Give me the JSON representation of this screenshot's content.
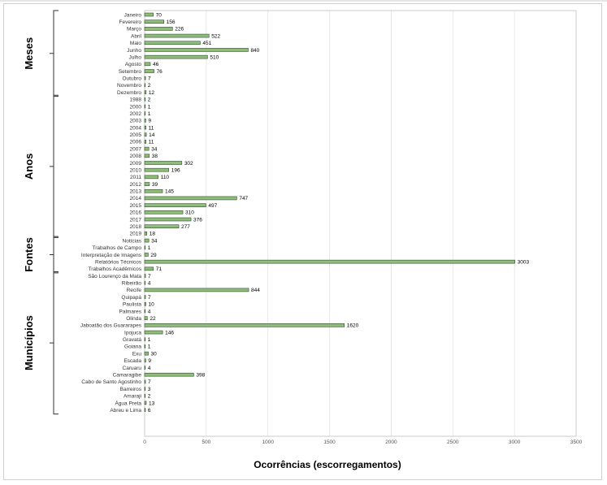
{
  "chart_data": {
    "type": "bar",
    "orientation": "horizontal",
    "xlabel": "Ocorrências (escorregamentos)",
    "xlim": [
      0,
      3500
    ],
    "xticks": [
      0,
      500,
      1000,
      1500,
      2000,
      2500,
      3000,
      3500
    ],
    "grid": "vertical",
    "bar_color": "#8fbc78",
    "bar_edge_color": "#2f4f2f",
    "groups": [
      {
        "name": "Meses",
        "categories": [
          "Janeiro",
          "Fevereiro",
          "Março",
          "Abril",
          "Maio",
          "Junho",
          "Julho",
          "Agosto",
          "Setembro",
          "Outubro",
          "Novembro",
          "Dezembro"
        ],
        "values": [
          70,
          156,
          226,
          522,
          451,
          840,
          510,
          46,
          76,
          7,
          2,
          12
        ]
      },
      {
        "name": "Anos",
        "categories": [
          "1988",
          "2000",
          "2002",
          "2003",
          "2004",
          "2005",
          "2006",
          "2007",
          "2008",
          "2009",
          "2010",
          "2011",
          "2012",
          "2013",
          "2014",
          "2015",
          "2016",
          "2017",
          "2018",
          "2019"
        ],
        "values": [
          2,
          1,
          1,
          9,
          11,
          14,
          11,
          34,
          38,
          302,
          196,
          110,
          39,
          145,
          747,
          497,
          310,
          376,
          277,
          18
        ]
      },
      {
        "name": "Fontes",
        "categories": [
          "Notícias",
          "Trabalhos de Campo",
          "Interpretação de Imagens",
          "Relatórios Técnicos",
          "Trabalhos Acadêmicos"
        ],
        "values": [
          34,
          1,
          29,
          3003,
          71
        ]
      },
      {
        "name": "Municípios",
        "categories": [
          "São Lourenço da Mata",
          "Ribeirão",
          "Recife",
          "Quipapá",
          "Paulista",
          "Palmares",
          "Olinda",
          "Jaboatão dos Guararapes",
          "Ipojuca",
          "Gravatá",
          "Goiana",
          "Exu",
          "Escada",
          "Caruaru",
          "Camaragibe",
          "Cabo de Santo Agostinho",
          "Barreiros",
          "Amaraji",
          "Água Preta",
          "Abreu e Lima"
        ],
        "values": [
          7,
          4,
          844,
          7,
          10,
          4,
          22,
          1620,
          146,
          1,
          1,
          30,
          9,
          4,
          398,
          7,
          3,
          2,
          13,
          6
        ]
      }
    ]
  }
}
